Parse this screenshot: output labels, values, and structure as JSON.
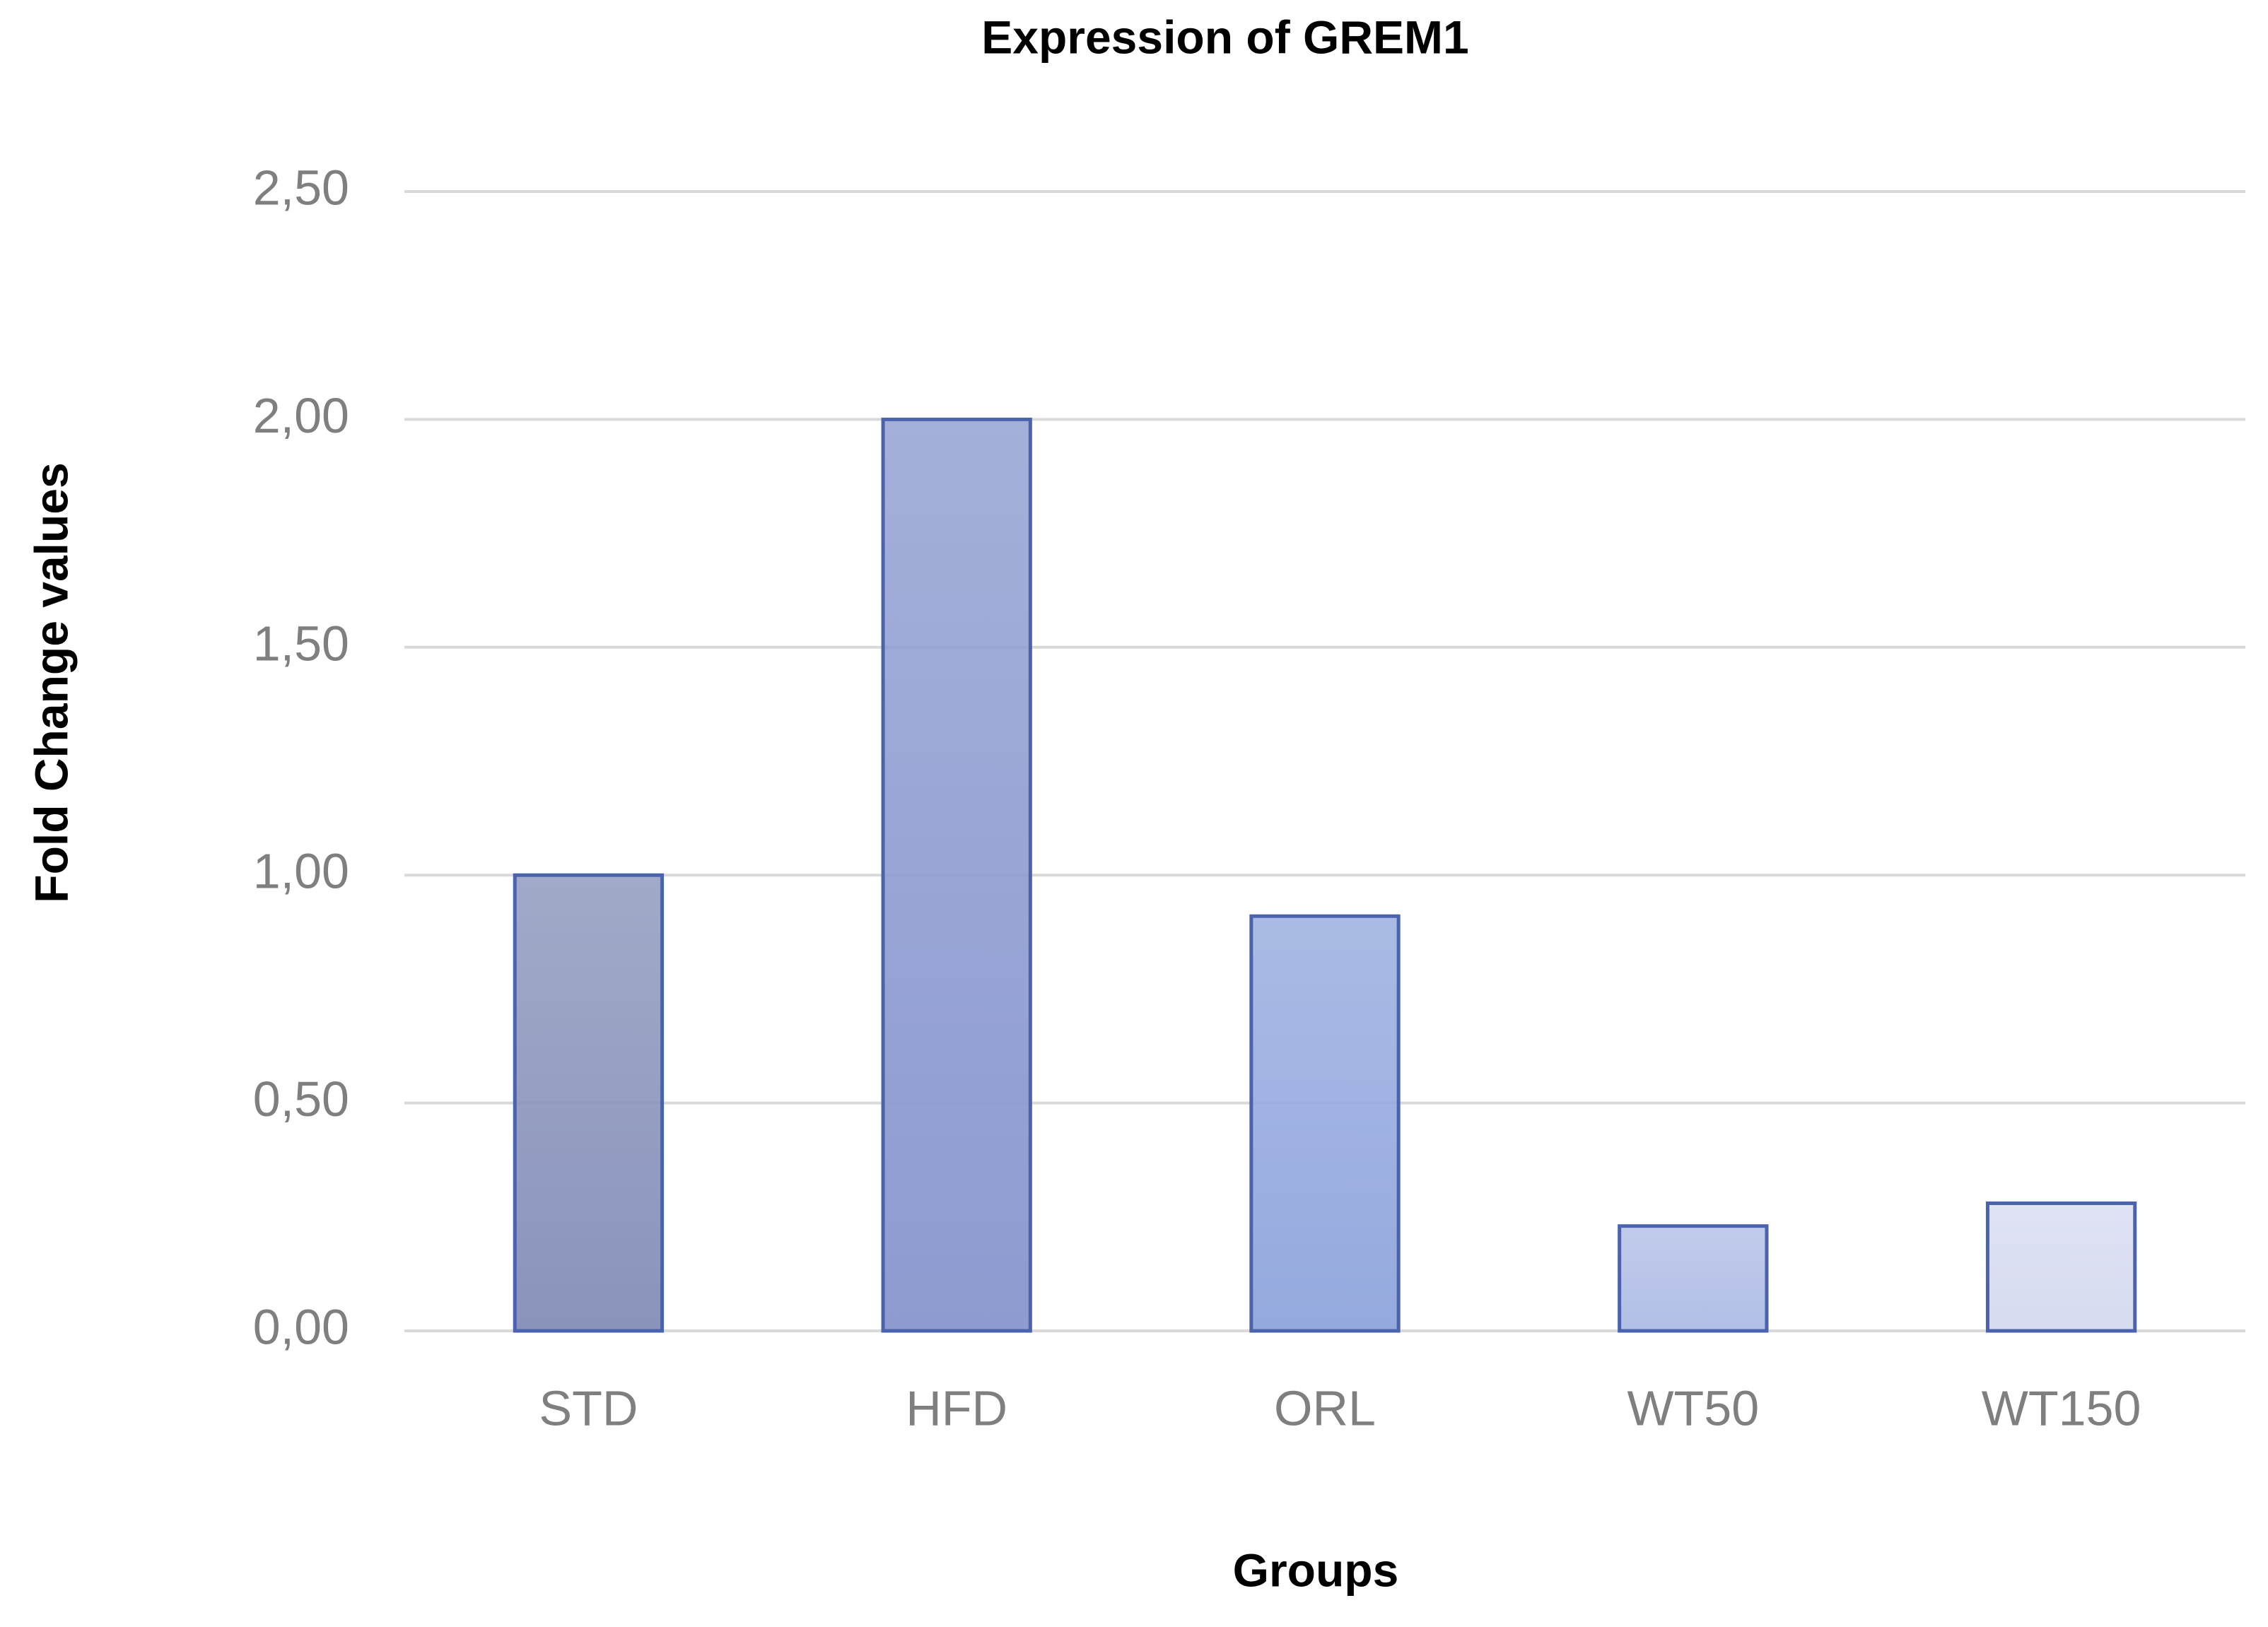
{
  "chart_data": {
    "type": "bar",
    "title": "Expression of GREM1",
    "x_label": "Groups",
    "y_label": "Fold Change values",
    "categories": [
      "STD",
      "HFD",
      "ORL",
      "WT50",
      "WT150"
    ],
    "values": [
      1.0,
      2.0,
      0.91,
      0.23,
      0.28
    ],
    "colors": [
      "#8a94bb",
      "#8d9bd0",
      "#94a9de",
      "#b2bee6",
      "#d6dbef"
    ],
    "ylim": [
      0,
      2.5
    ],
    "yticks": [
      {
        "value": 0,
        "label": "0,00"
      },
      {
        "value": 0.5,
        "label": "0,50"
      },
      {
        "value": 1,
        "label": "1,00"
      },
      {
        "value": 1.5,
        "label": "1,50"
      },
      {
        "value": 2,
        "label": "2,00"
      },
      {
        "value": 2.5,
        "label": "2,50"
      }
    ],
    "grid": true
  }
}
